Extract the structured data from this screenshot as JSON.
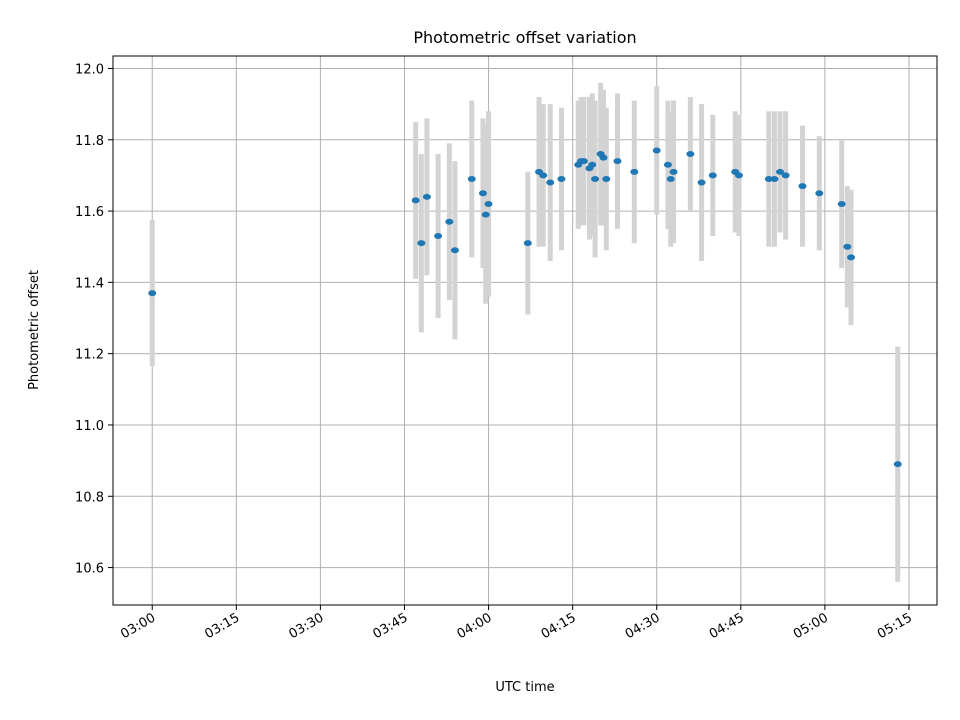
{
  "chart_data": {
    "type": "scatter",
    "title": "Photometric offset variation",
    "xlabel": "UTC time",
    "ylabel": "Photometric offset",
    "xlim": [
      "02:53",
      "05:20"
    ],
    "ylim": [
      10.495,
      12.035
    ],
    "x_ticks": [
      "03:00",
      "03:15",
      "03:30",
      "03:45",
      "04:00",
      "04:15",
      "04:30",
      "04:45",
      "05:00",
      "05:15"
    ],
    "y_ticks": [
      10.6,
      10.8,
      11.0,
      11.2,
      11.4,
      11.6,
      11.8,
      12.0
    ],
    "y_tick_labels": [
      "10.6",
      "10.8",
      "11.0",
      "11.2",
      "11.4",
      "11.6",
      "11.8",
      "12.0"
    ],
    "grid": true,
    "marker_color": "#1f77b4",
    "errorbar_color": "#d3d3d3",
    "points": [
      {
        "t": "03:00",
        "y": 11.37,
        "err": 0.205
      },
      {
        "t": "03:47",
        "y": 11.63,
        "err": 0.22
      },
      {
        "t": "03:48",
        "y": 11.51,
        "err": 0.25
      },
      {
        "t": "03:49",
        "y": 11.64,
        "err": 0.22
      },
      {
        "t": "03:51",
        "y": 11.53,
        "err": 0.23
      },
      {
        "t": "03:53",
        "y": 11.57,
        "err": 0.22
      },
      {
        "t": "03:54",
        "y": 11.49,
        "err": 0.25
      },
      {
        "t": "03:57",
        "y": 11.69,
        "err": 0.22
      },
      {
        "t": "03:59",
        "y": 11.65,
        "err": 0.21
      },
      {
        "t": "03:59:30",
        "y": 11.59,
        "err": 0.25
      },
      {
        "t": "04:00",
        "y": 11.62,
        "err": 0.26
      },
      {
        "t": "04:07",
        "y": 11.51,
        "err": 0.2
      },
      {
        "t": "04:09",
        "y": 11.71,
        "err": 0.21
      },
      {
        "t": "04:09:45",
        "y": 11.7,
        "err": 0.2
      },
      {
        "t": "04:11",
        "y": 11.68,
        "err": 0.22
      },
      {
        "t": "04:13",
        "y": 11.69,
        "err": 0.2
      },
      {
        "t": "04:16",
        "y": 11.73,
        "err": 0.18
      },
      {
        "t": "04:16:30",
        "y": 11.74,
        "err": 0.18
      },
      {
        "t": "04:17",
        "y": 11.74,
        "err": 0.18
      },
      {
        "t": "04:18",
        "y": 11.72,
        "err": 0.2
      },
      {
        "t": "04:18:30",
        "y": 11.73,
        "err": 0.2
      },
      {
        "t": "04:19",
        "y": 11.69,
        "err": 0.22
      },
      {
        "t": "04:20",
        "y": 11.76,
        "err": 0.2
      },
      {
        "t": "04:20:30",
        "y": 11.75,
        "err": 0.19
      },
      {
        "t": "04:21",
        "y": 11.69,
        "err": 0.2
      },
      {
        "t": "04:23",
        "y": 11.74,
        "err": 0.19
      },
      {
        "t": "04:26",
        "y": 11.71,
        "err": 0.2
      },
      {
        "t": "04:30",
        "y": 11.77,
        "err": 0.18
      },
      {
        "t": "04:32",
        "y": 11.73,
        "err": 0.18
      },
      {
        "t": "04:32:30",
        "y": 11.69,
        "err": 0.19
      },
      {
        "t": "04:33",
        "y": 11.71,
        "err": 0.2
      },
      {
        "t": "04:36",
        "y": 11.76,
        "err": 0.16
      },
      {
        "t": "04:38",
        "y": 11.68,
        "err": 0.22
      },
      {
        "t": "04:40",
        "y": 11.7,
        "err": 0.17
      },
      {
        "t": "04:44",
        "y": 11.71,
        "err": 0.17
      },
      {
        "t": "04:44:40",
        "y": 11.7,
        "err": 0.17
      },
      {
        "t": "04:50",
        "y": 11.69,
        "err": 0.19
      },
      {
        "t": "04:51",
        "y": 11.69,
        "err": 0.19
      },
      {
        "t": "04:52",
        "y": 11.71,
        "err": 0.17
      },
      {
        "t": "04:53",
        "y": 11.7,
        "err": 0.18
      },
      {
        "t": "04:56",
        "y": 11.67,
        "err": 0.17
      },
      {
        "t": "04:59",
        "y": 11.65,
        "err": 0.16
      },
      {
        "t": "05:03",
        "y": 11.62,
        "err": 0.18
      },
      {
        "t": "05:04",
        "y": 11.5,
        "err": 0.17
      },
      {
        "t": "05:04:40",
        "y": 11.47,
        "err": 0.19
      },
      {
        "t": "05:13",
        "y": 10.89,
        "err": 0.33
      }
    ]
  }
}
